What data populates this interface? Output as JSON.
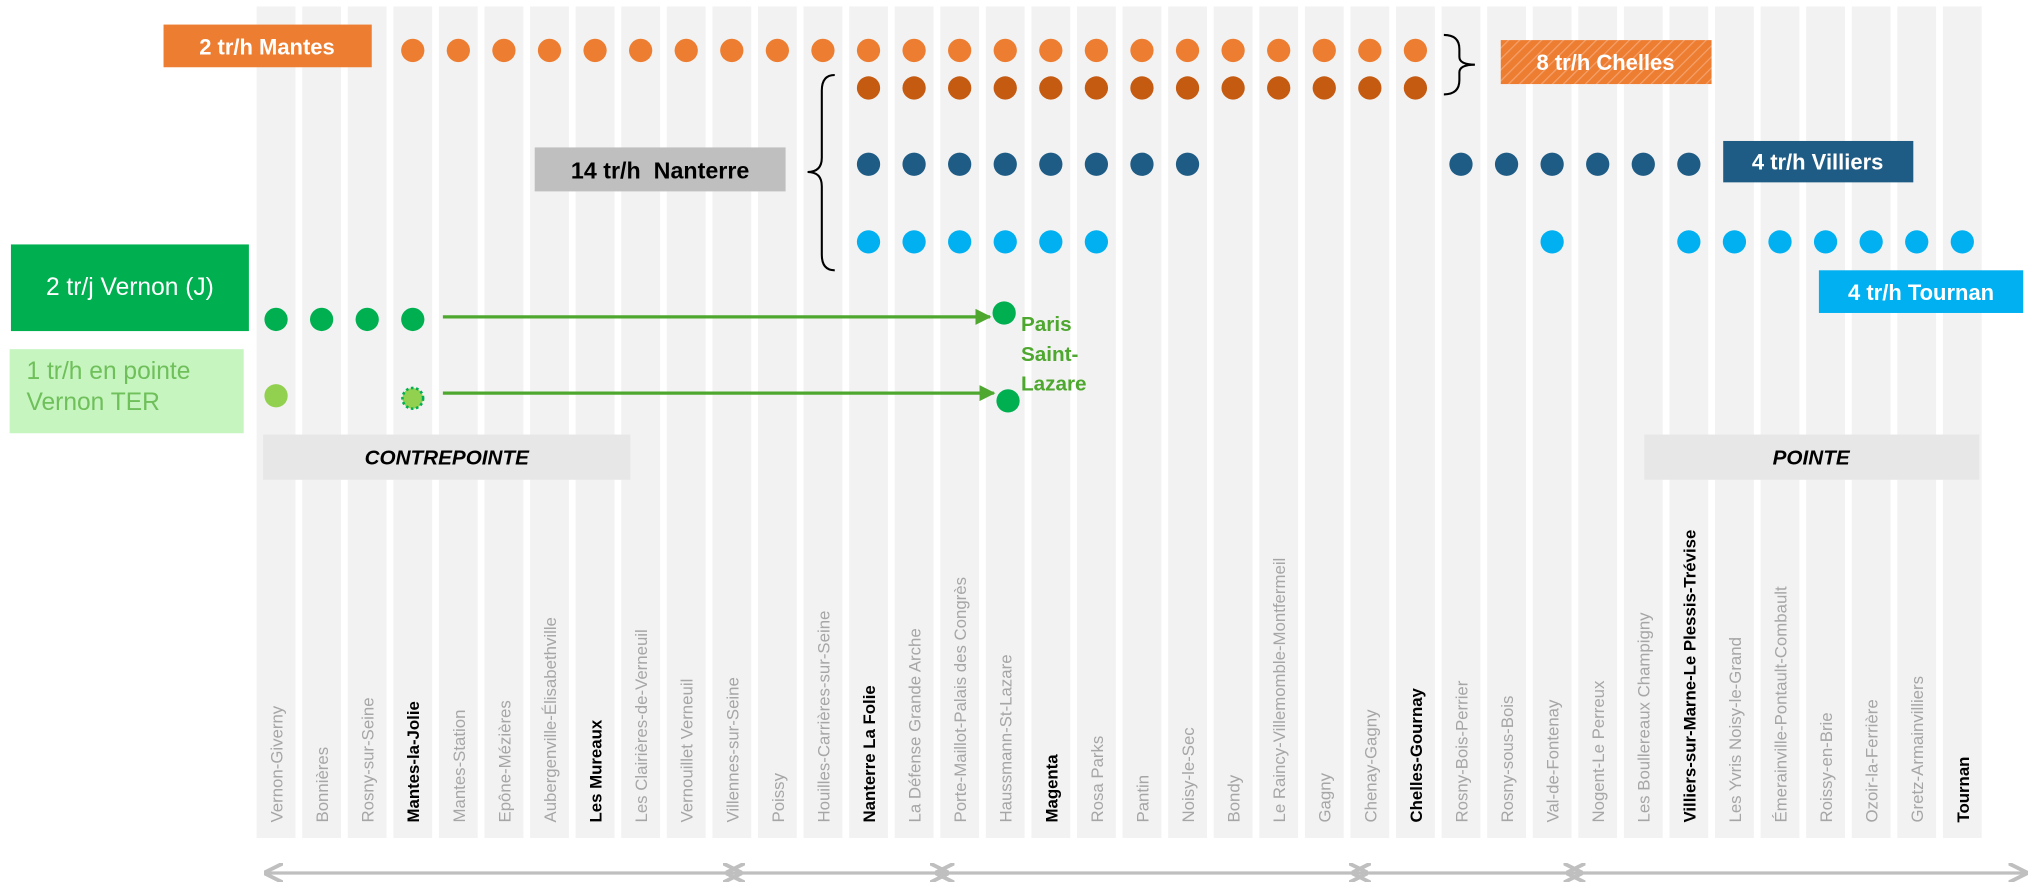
{
  "stations": [
    {
      "name": "Vernon-Giverny",
      "bold": false
    },
    {
      "name": "Bonnières",
      "bold": false
    },
    {
      "name": "Rosny-sur-Seine",
      "bold": false
    },
    {
      "name": "Mantes-la-Jolie",
      "bold": true
    },
    {
      "name": "Mantes-Station",
      "bold": false
    },
    {
      "name": "Epône-Mézières",
      "bold": false
    },
    {
      "name": "Aubergenville-Élisabethville",
      "bold": false
    },
    {
      "name": "Les Mureaux",
      "bold": true
    },
    {
      "name": "Les Clairières-de-Verneuil",
      "bold": false
    },
    {
      "name": "Vernouillet Verneuil",
      "bold": false
    },
    {
      "name": "Villennes-sur-Seine",
      "bold": false
    },
    {
      "name": "Poissy",
      "bold": false
    },
    {
      "name": "Houilles-Carrières-sur-Seine",
      "bold": false
    },
    {
      "name": "Nanterre La Folie",
      "bold": true
    },
    {
      "name": "La Défense Grande Arche",
      "bold": false
    },
    {
      "name": "Porte-Maillot-Palais des Congrès",
      "bold": false
    },
    {
      "name": "Haussmann-St-Lazare",
      "bold": false
    },
    {
      "name": "Magenta",
      "bold": true
    },
    {
      "name": "Rosa Parks",
      "bold": false
    },
    {
      "name": "Pantin",
      "bold": false
    },
    {
      "name": "Noisy-le-Sec",
      "bold": false
    },
    {
      "name": "Bondy",
      "bold": false
    },
    {
      "name": "Le Raincy-Villemomble-Montfermeil",
      "bold": false
    },
    {
      "name": "Gagny",
      "bold": false
    },
    {
      "name": "Chenay-Gagny",
      "bold": false
    },
    {
      "name": "Chelles-Gournay",
      "bold": true
    },
    {
      "name": "Rosny-Bois-Perrier",
      "bold": false
    },
    {
      "name": "Rosny-sous-Bois",
      "bold": false
    },
    {
      "name": "Val-de-Fontenay",
      "bold": false
    },
    {
      "name": "Nogent-Le Perreux",
      "bold": false
    },
    {
      "name": "Les Boullereaux Champigny",
      "bold": false
    },
    {
      "name": "Villiers-sur-Marne-Le Plessis-Trévise",
      "bold": true
    },
    {
      "name": "Les Yvris Noisy-le-Grand",
      "bold": false
    },
    {
      "name": "Émerainville-Pontault-Combault",
      "bold": false
    },
    {
      "name": "Roissy-en-Brie",
      "bold": false
    },
    {
      "name": "Ozoir-la-Ferrière",
      "bold": false
    },
    {
      "name": "Gretz-Armainvilliers",
      "bold": false
    },
    {
      "name": "Tournan",
      "bold": true
    }
  ],
  "services": {
    "mantes": "2 tr/h Mantes",
    "chelles": "8 tr/h Chelles",
    "nanterre": "14 tr/h  Nanterre",
    "villiers": "4 tr/h Villiers",
    "tournan": "4 tr/h Tournan",
    "vernon_j": "2 tr/j Vernon (J)",
    "vernon_ter": "1 tr/h en pointe Vernon TER"
  },
  "terminus": "Paris Saint-Lazare",
  "periods": {
    "off_peak": "CONTREPOINTE",
    "peak": "POINTE"
  }
}
